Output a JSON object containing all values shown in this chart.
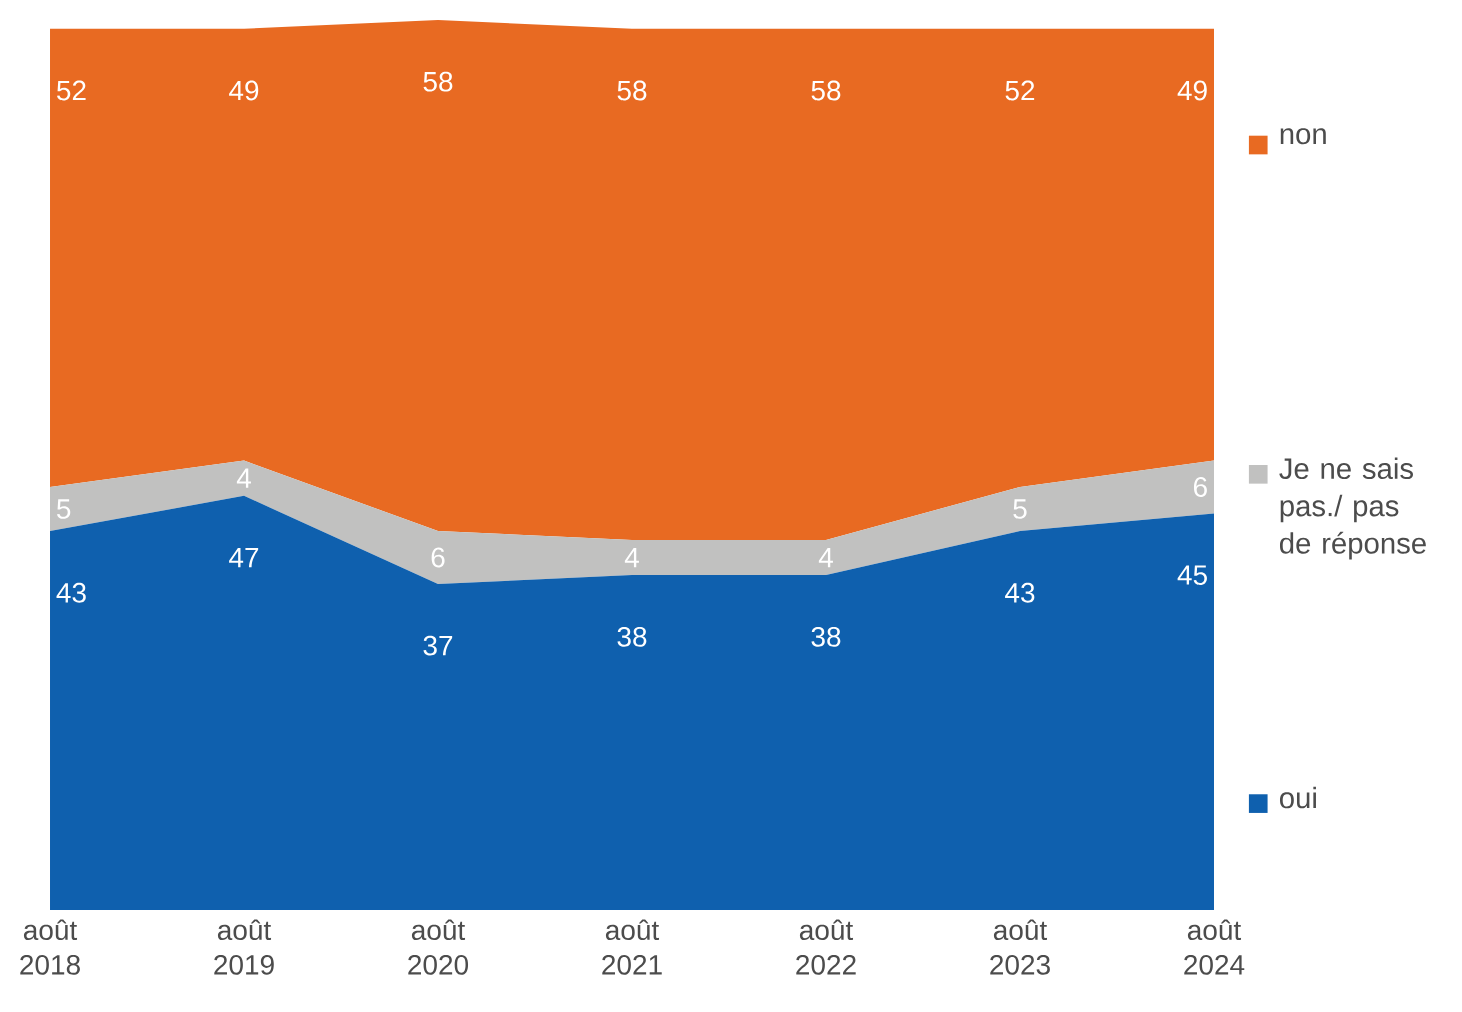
{
  "chart_data": {
    "type": "area",
    "stacked": true,
    "data_labels": true,
    "legend": "right",
    "categories": [
      "août 2018",
      "août 2019",
      "août 2020",
      "août 2021",
      "août 2022",
      "août 2023",
      "août 2024"
    ],
    "series": [
      {
        "name": "oui",
        "color": "#0f60ae",
        "values": [
          43,
          47,
          37,
          38,
          38,
          43,
          45
        ]
      },
      {
        "name": "Je ne sais pas./ pas de réponse",
        "color": "#c1c1c0",
        "values": [
          5,
          4,
          6,
          4,
          4,
          5,
          6
        ]
      },
      {
        "name": "non",
        "color": "#e86a22",
        "values": [
          52,
          49,
          58,
          58,
          58,
          52,
          49
        ]
      }
    ]
  }
}
